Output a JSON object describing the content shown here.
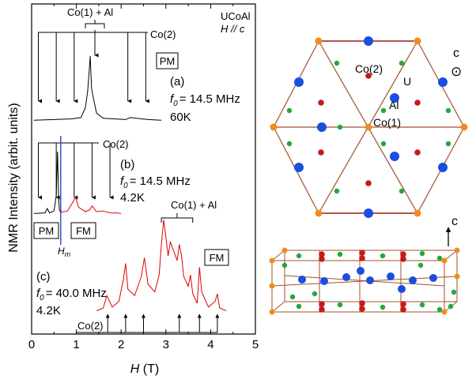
{
  "chart_data": [
    {
      "type": "line",
      "xlabel": "H (T)",
      "xlabel_var": "H",
      "xlabel_unit": " (T)",
      "ylabel": "NMR Intensity (arbit. units)",
      "xlim": [
        0,
        5
      ],
      "xticks": [
        "0",
        "1",
        "2",
        "3",
        "4",
        "5"
      ],
      "sample": "UCoAl",
      "field_orientation": "H // c",
      "panels": [
        {
          "label": "(a)",
          "f0": "= 14.5 MHz",
          "temperature": "60K",
          "phase_box": "PM",
          "group_labels": [
            "Co(1) + Al",
            "Co(2)"
          ],
          "co2_lines_T": [
            0.15,
            0.55,
            0.95,
            2.15,
            2.55
          ],
          "co1_al_lines_T": [
            1.3
          ],
          "series": [
            {
              "color": "#000000",
              "x": [
                0.05,
                0.5,
                0.9,
                1.1,
                1.2,
                1.25,
                1.28,
                1.31,
                1.34,
                1.38,
                1.45,
                1.6,
                2.1,
                2.2,
                2.6,
                2.9
              ],
              "y": [
                0.01,
                0.02,
                0.03,
                0.05,
                0.2,
                0.45,
                0.7,
                1.0,
                0.5,
                0.35,
                0.12,
                0.04,
                0.02,
                0.05,
                0.02,
                0.01
              ]
            }
          ]
        },
        {
          "label": "(b)",
          "f0": "= 14.5 MHz",
          "temperature": "4.2K",
          "phase_boxes": [
            "PM",
            "FM"
          ],
          "group_labels": [
            "Co(2)"
          ],
          "boundary_label": "H",
          "boundary_label_sub": "m",
          "boundary_field_T": 0.65,
          "co2_lines_T": [
            0.15,
            0.55,
            0.95,
            1.35,
            1.75
          ],
          "series": [
            {
              "name": "PM",
              "color": "#000000",
              "x": [
                0.05,
                0.3,
                0.35,
                0.4,
                0.5,
                0.55,
                0.58,
                0.6,
                0.62,
                0.65
              ],
              "y": [
                0.02,
                0.03,
                0.1,
                0.03,
                0.06,
                0.3,
                1.0,
                0.3,
                0.08,
                0.04
              ]
            },
            {
              "name": "FM",
              "color": "#e00000",
              "x": [
                0.65,
                0.8,
                0.92,
                0.98,
                1.05,
                1.2,
                1.3,
                1.35,
                1.45,
                1.6,
                1.75,
                1.9,
                2.0
              ],
              "y": [
                0.04,
                0.06,
                0.2,
                0.28,
                0.12,
                0.05,
                0.08,
                0.14,
                0.05,
                0.06,
                0.03,
                0.03,
                0.02
              ]
            }
          ]
        },
        {
          "label": "(c)",
          "f0": "= 40.0 MHz",
          "temperature": "4.2K",
          "phase_box": "FM",
          "group_labels": [
            "Co(1) + Al",
            "Co(2)"
          ],
          "co2_lines_T": [
            1.7,
            2.1,
            2.5,
            3.3,
            3.75,
            4.15
          ],
          "co1_al_range_T": [
            2.9,
            3.6
          ],
          "series": [
            {
              "name": "FM",
              "color": "#e00000",
              "x": [
                1.45,
                1.6,
                1.68,
                1.72,
                1.8,
                1.95,
                2.05,
                2.1,
                2.15,
                2.3,
                2.45,
                2.52,
                2.6,
                2.75,
                2.85,
                2.9,
                2.95,
                3.0,
                3.05,
                3.1,
                3.15,
                3.2,
                3.25,
                3.3,
                3.35,
                3.4,
                3.5,
                3.55,
                3.6,
                3.7,
                3.75,
                3.8,
                3.95,
                4.1,
                4.15,
                4.2,
                4.35
              ],
              "y": [
                0.02,
                0.05,
                0.18,
                0.14,
                0.06,
                0.12,
                0.35,
                0.52,
                0.25,
                0.18,
                0.38,
                0.58,
                0.3,
                0.22,
                0.4,
                0.72,
                0.98,
                0.8,
                0.6,
                0.75,
                0.68,
                0.62,
                0.55,
                0.72,
                0.6,
                0.38,
                0.28,
                0.4,
                0.2,
                0.1,
                0.48,
                0.22,
                0.06,
                0.12,
                0.2,
                0.05,
                0.02
              ]
            }
          ]
        }
      ]
    },
    {
      "type": "other",
      "title": "",
      "labels": {
        "co2": "Co(2)",
        "u": "U",
        "al": "Al",
        "co1": "Co(1)",
        "axis_c": "c",
        "axis_c_symbol": "⊙",
        "axis_c_side": "c"
      },
      "atom_colors": {
        "U": "#1a4de0",
        "Co1": "#f08c1e",
        "Co2": "#c41a1a",
        "Al": "#22a83a",
        "bonds": "#a0522d",
        "edge": "#9b1c1c"
      }
    }
  ]
}
